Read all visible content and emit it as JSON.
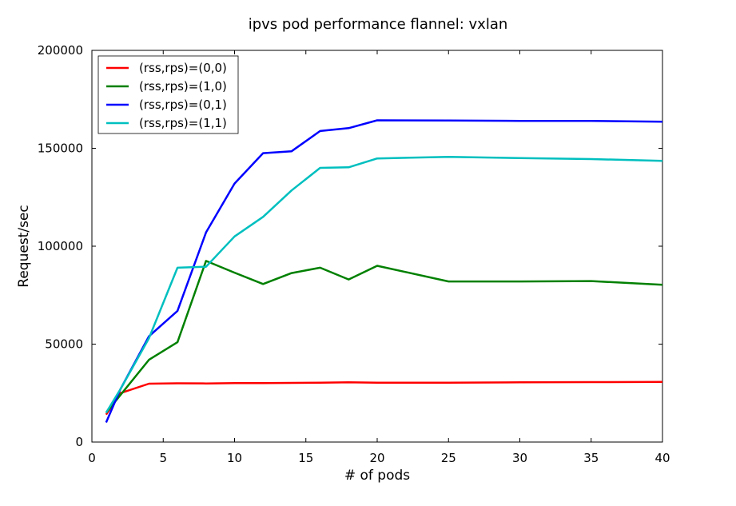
{
  "chart_data": {
    "type": "line",
    "title": "ipvs pod performance flannel: vxlan",
    "xlabel": "# of pods",
    "ylabel": "Request/sec",
    "xlim": [
      0,
      40
    ],
    "ylim": [
      0,
      200000
    ],
    "xticks": [
      0,
      5,
      10,
      15,
      20,
      25,
      30,
      35,
      40
    ],
    "yticks": [
      0,
      50000,
      100000,
      150000,
      200000
    ],
    "grid": false,
    "legend_position": "top-left",
    "series": [
      {
        "name": "(rss,rps)=(0,0)",
        "color": "#ff0000",
        "x": [
          1,
          2,
          4,
          6,
          8,
          10,
          12,
          14,
          16,
          18,
          20,
          25,
          30,
          35,
          40
        ],
        "y": [
          14000,
          25000,
          29800,
          30000,
          29900,
          30100,
          30100,
          30200,
          30300,
          30500,
          30300,
          30300,
          30500,
          30600,
          30700
        ]
      },
      {
        "name": "(rss,rps)=(1,0)",
        "color": "#008000",
        "x": [
          1,
          2,
          4,
          6,
          8,
          10,
          12,
          14,
          16,
          18,
          20,
          25,
          30,
          35,
          40
        ],
        "y": [
          15000,
          24000,
          42000,
          51000,
          92500,
          86500,
          80700,
          86300,
          89000,
          83000,
          90000,
          82000,
          82000,
          82200,
          80300
        ]
      },
      {
        "name": "(rss,rps)=(0,1)",
        "color": "#0000ff",
        "x": [
          1,
          2,
          4,
          6,
          8,
          10,
          12,
          14,
          16,
          18,
          20,
          25,
          30,
          35,
          40
        ],
        "y": [
          10000,
          27000,
          54000,
          67000,
          107000,
          132000,
          147500,
          148500,
          158800,
          160300,
          164300,
          164200,
          164000,
          164000,
          163600
        ]
      },
      {
        "name": "(rss,rps)=(1,1)",
        "color": "#00bfbf",
        "x": [
          1,
          2,
          4,
          6,
          8,
          10,
          12,
          14,
          16,
          18,
          20,
          25,
          30,
          35,
          40
        ],
        "y": [
          15000,
          27000,
          53000,
          89000,
          89500,
          105000,
          115000,
          128500,
          140000,
          140300,
          144800,
          145600,
          145000,
          144500,
          143600
        ]
      }
    ]
  }
}
